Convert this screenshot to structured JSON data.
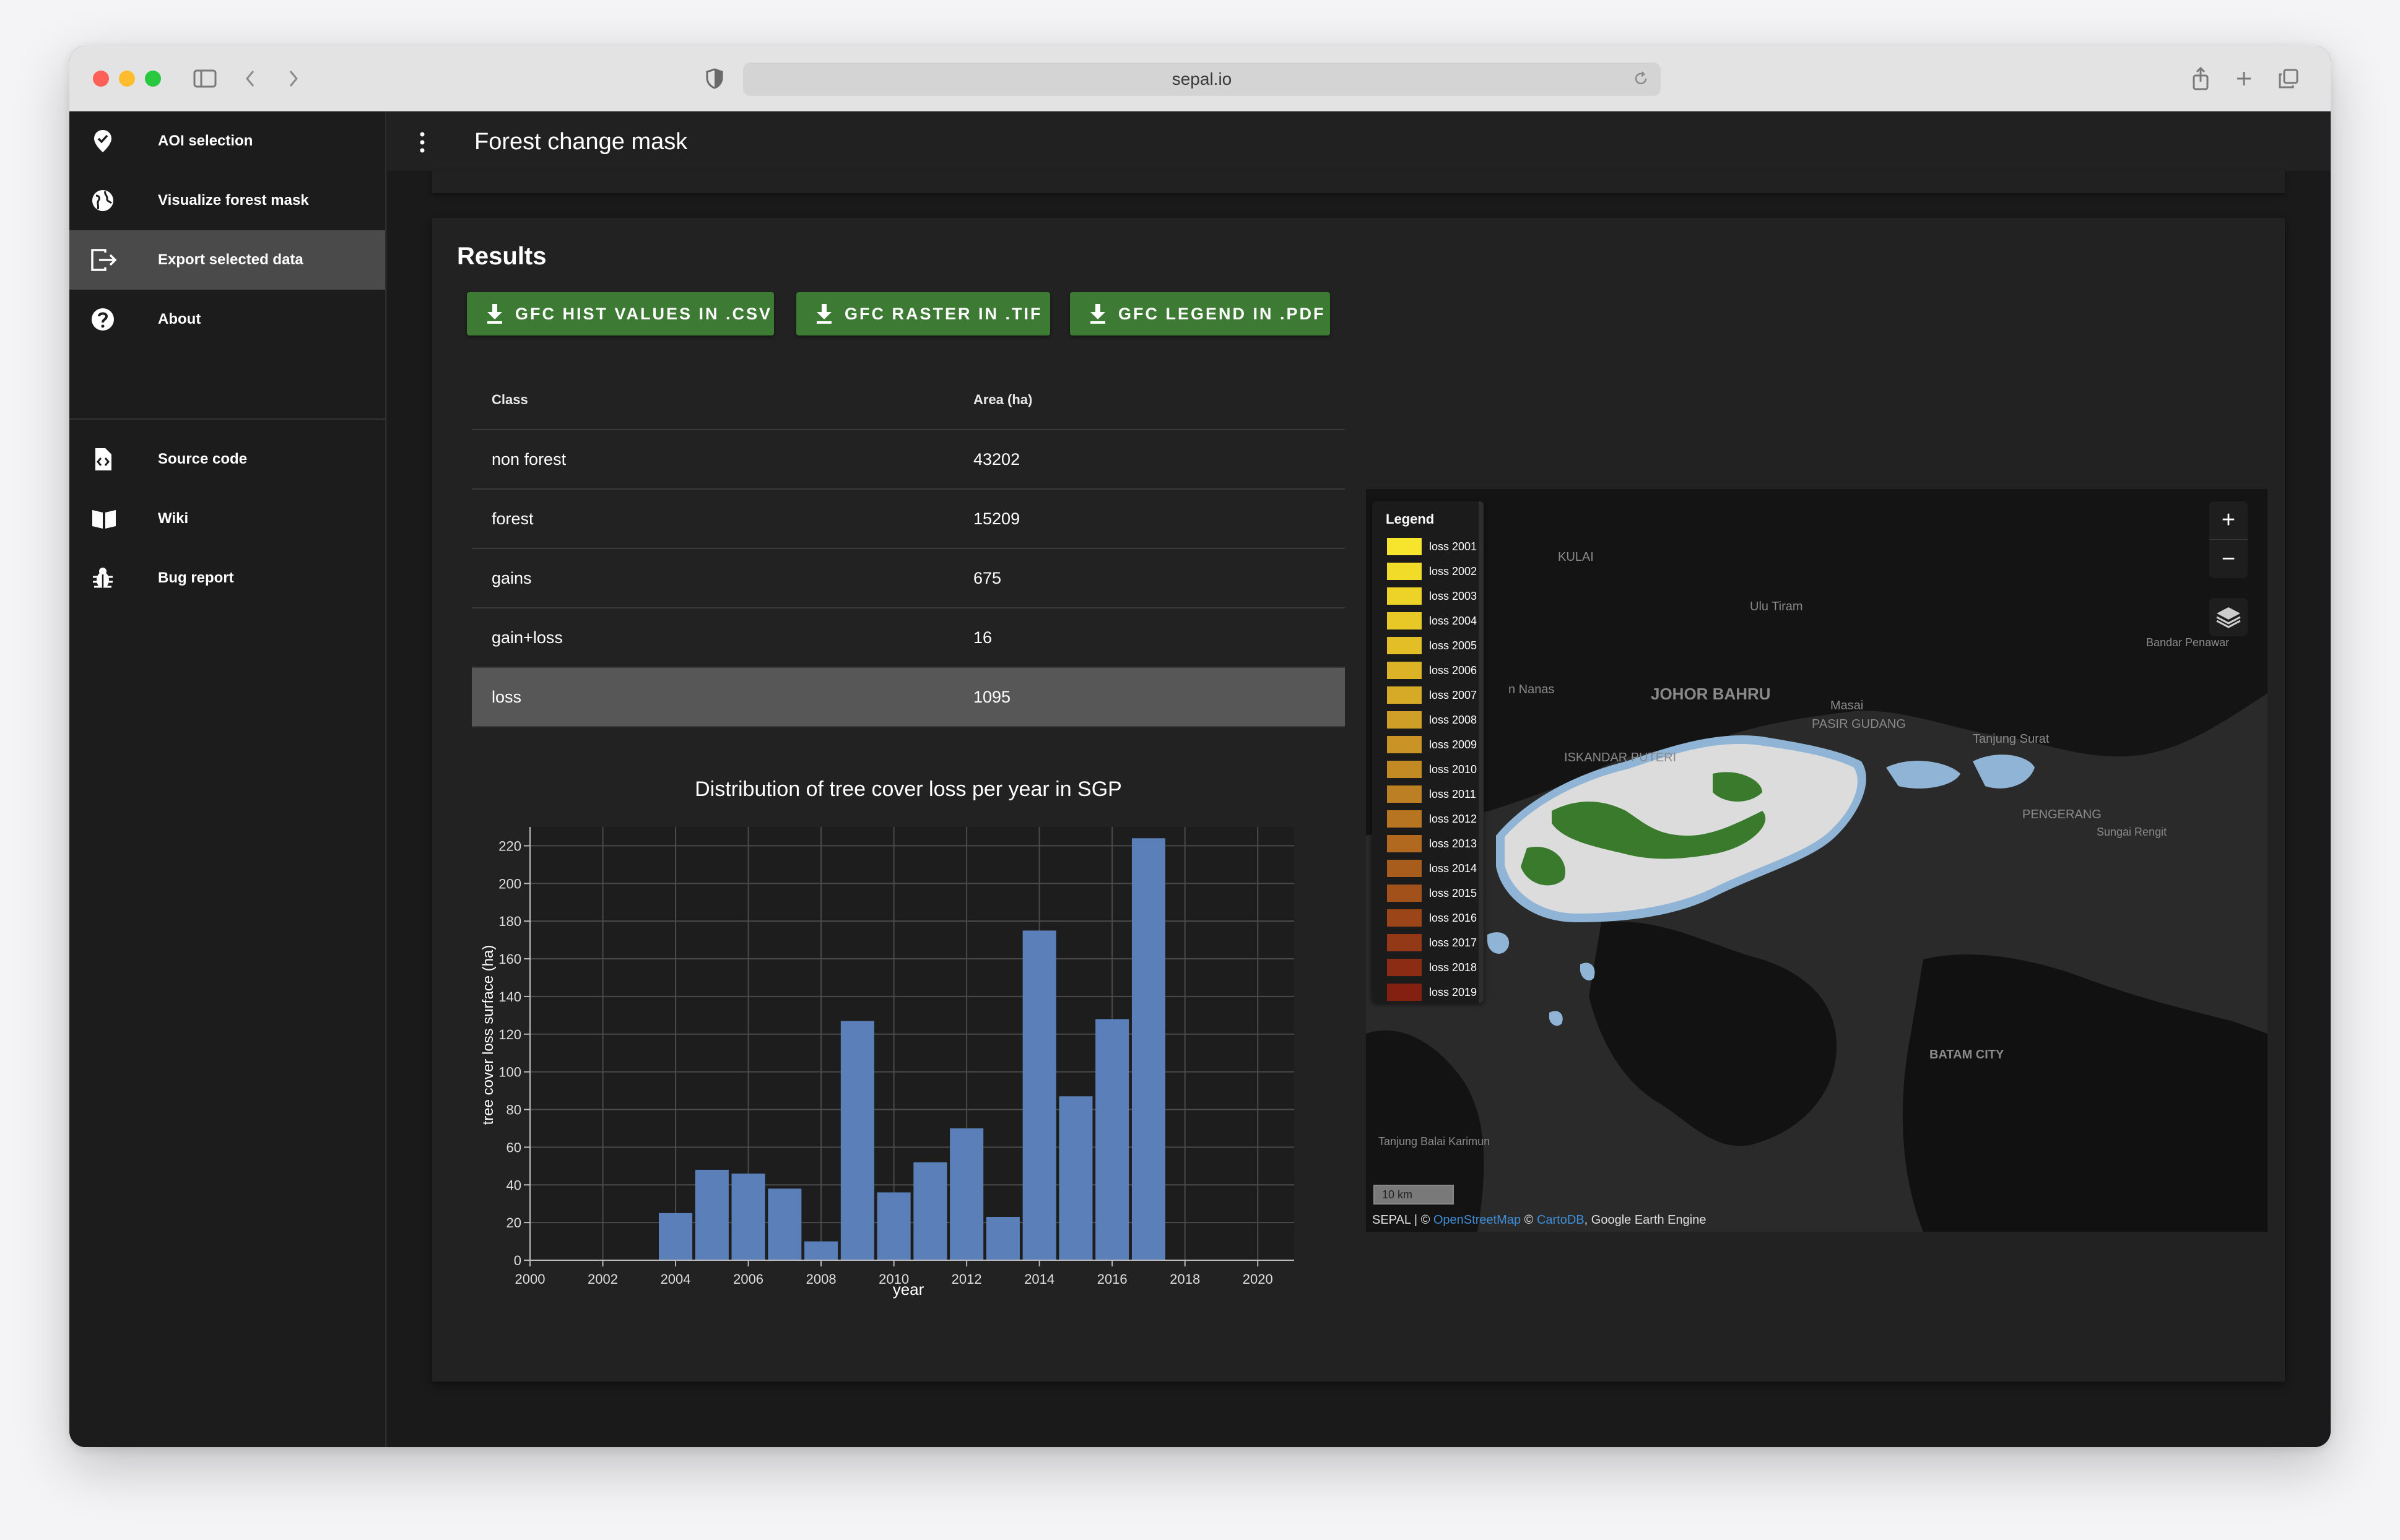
{
  "browser": {
    "url": "sepal.io"
  },
  "sidebar": {
    "items": [
      {
        "label": "AOI selection",
        "icon": "map-marker-check-icon"
      },
      {
        "label": "Visualize forest mask",
        "icon": "globe-icon"
      },
      {
        "label": "Export selected data",
        "icon": "export-icon",
        "active": true
      },
      {
        "label": "About",
        "icon": "help-circle-icon"
      },
      {
        "label": "Source code",
        "icon": "file-code-icon"
      },
      {
        "label": "Wiki",
        "icon": "book-icon"
      },
      {
        "label": "Bug report",
        "icon": "bug-icon"
      }
    ]
  },
  "appbar": {
    "title": "Forest change mask"
  },
  "results": {
    "title": "Results",
    "buttons": {
      "csv": "GFC HIST VALUES IN .CSV",
      "tif": "GFC RASTER IN .TIF",
      "pdf": "GFC LEGEND IN .PDF"
    },
    "table": {
      "headers": [
        "Class",
        "Area (ha)"
      ],
      "rows": [
        [
          "non forest",
          "43202"
        ],
        [
          "forest",
          "15209"
        ],
        [
          "gains",
          "675"
        ],
        [
          "gain+loss",
          "16"
        ],
        [
          "loss",
          "1095"
        ]
      ],
      "highlighted_row": 4
    }
  },
  "chart_data": {
    "type": "bar",
    "title": "Distribution of tree cover loss per year in SGP",
    "xlabel": "year",
    "ylabel": "tree cover loss surface (ha)",
    "bar_color": "#5b7fb8",
    "x": [
      2004,
      2005,
      2006,
      2007,
      2008,
      2009,
      2010,
      2011,
      2012,
      2013,
      2014,
      2015,
      2016,
      2017
    ],
    "values": [
      25,
      48,
      46,
      38,
      10,
      127,
      36,
      52,
      70,
      23,
      175,
      87,
      128,
      224
    ],
    "xlim": [
      2000,
      2021
    ],
    "ylim": [
      0,
      230
    ],
    "xticks": [
      "2000",
      "2002",
      "2004",
      "2006",
      "2008",
      "2010",
      "2012",
      "2014",
      "2016",
      "2018",
      "2020"
    ],
    "yticks": [
      "0",
      "20",
      "40",
      "60",
      "80",
      "100",
      "120",
      "140",
      "160",
      "180",
      "200",
      "220"
    ],
    "grid": true
  },
  "map": {
    "legend_title": "Legend",
    "legend_items": [
      {
        "label": "loss 2001",
        "color": "#f6e52c"
      },
      {
        "label": "loss 2002",
        "color": "#f2dc2a"
      },
      {
        "label": "loss 2003",
        "color": "#edd228"
      },
      {
        "label": "loss 2004",
        "color": "#e8c827"
      },
      {
        "label": "loss 2005",
        "color": "#e3be26"
      },
      {
        "label": "loss 2006",
        "color": "#dcb326"
      },
      {
        "label": "loss 2007",
        "color": "#d6a927"
      },
      {
        "label": "loss 2008",
        "color": "#cf9e26"
      },
      {
        "label": "loss 2009",
        "color": "#c99425"
      },
      {
        "label": "loss 2010",
        "color": "#c38a24"
      },
      {
        "label": "loss 2011",
        "color": "#bd7f23"
      },
      {
        "label": "loss 2012",
        "color": "#b77421"
      },
      {
        "label": "loss 2013",
        "color": "#b0691f"
      },
      {
        "label": "loss 2014",
        "color": "#a95d1d"
      },
      {
        "label": "loss 2015",
        "color": "#a2511b"
      },
      {
        "label": "loss 2016",
        "color": "#9b4519"
      },
      {
        "label": "loss 2017",
        "color": "#943917"
      },
      {
        "label": "loss 2018",
        "color": "#8c2c15"
      },
      {
        "label": "loss 2019",
        "color": "#842012"
      }
    ],
    "zoom_in": "+",
    "zoom_out": "−",
    "place_labels": [
      "KULAI",
      "Ulu Tiram",
      "JOHOR BAHRU",
      "Masai",
      "PASIR GUDANG",
      "Tanjung Surat",
      "Bandar Penawar",
      "ISKANDAR PUTERI",
      "n Nanas",
      "PENGERANG",
      "Sungai Rengit",
      "BATAM CITY",
      "Tanjung Balai Karimun"
    ],
    "scale": "10 km",
    "attribution": {
      "prefix": "SEPAL | ©",
      "osm": "OpenStreetMap",
      "sep": "©",
      "carto": "CartoDB",
      "suffix": ", Google Earth Engine"
    }
  }
}
